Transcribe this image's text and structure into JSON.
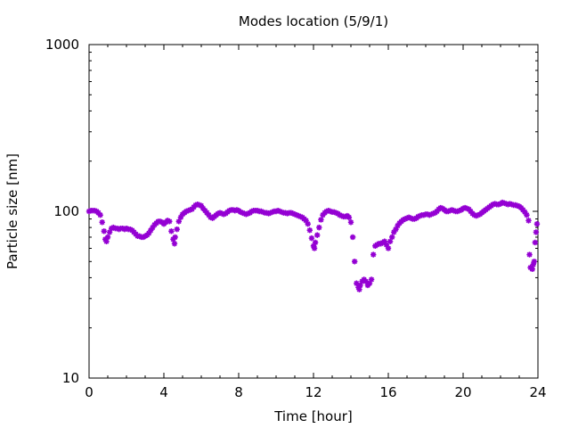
{
  "chart_data": {
    "type": "scatter",
    "title": "Modes location (5/9/1)",
    "xlabel": "Time [hour]",
    "ylabel": "Particle size [nm]",
    "xlim": [
      0,
      24
    ],
    "ylim": [
      10,
      1000
    ],
    "yscale": "log",
    "xticks": [
      0,
      4,
      8,
      12,
      16,
      20,
      24
    ],
    "xtick_labels": [
      "0",
      "4",
      "8",
      "12",
      "16",
      "20",
      "24"
    ],
    "yticks": [
      10,
      100,
      1000
    ],
    "ytick_labels": [
      "10",
      "100",
      "1000"
    ],
    "grid": false,
    "legend": "none",
    "marker": "star",
    "color": "#9400d3",
    "series": [
      {
        "points": [
          [
            0.0,
            100
          ],
          [
            0.1,
            101
          ],
          [
            0.2,
            101
          ],
          [
            0.3,
            101
          ],
          [
            0.4,
            100
          ],
          [
            0.5,
            98
          ],
          [
            0.6,
            95
          ],
          [
            0.7,
            86
          ],
          [
            0.8,
            76
          ],
          [
            0.87,
            68
          ],
          [
            0.93,
            66
          ],
          [
            1.0,
            70
          ],
          [
            1.1,
            75
          ],
          [
            1.2,
            79
          ],
          [
            1.3,
            80
          ],
          [
            1.4,
            79
          ],
          [
            1.5,
            79
          ],
          [
            1.6,
            78
          ],
          [
            1.7,
            79
          ],
          [
            1.8,
            79
          ],
          [
            1.9,
            78
          ],
          [
            2.0,
            79
          ],
          [
            2.1,
            78
          ],
          [
            2.2,
            78
          ],
          [
            2.3,
            77
          ],
          [
            2.4,
            75
          ],
          [
            2.5,
            73
          ],
          [
            2.6,
            71
          ],
          [
            2.7,
            71
          ],
          [
            2.8,
            70
          ],
          [
            2.9,
            70
          ],
          [
            3.0,
            71
          ],
          [
            3.1,
            72
          ],
          [
            3.2,
            74
          ],
          [
            3.3,
            77
          ],
          [
            3.4,
            80
          ],
          [
            3.5,
            83
          ],
          [
            3.6,
            85
          ],
          [
            3.7,
            87
          ],
          [
            3.8,
            87
          ],
          [
            3.9,
            86
          ],
          [
            4.0,
            84
          ],
          [
            4.1,
            86
          ],
          [
            4.2,
            88
          ],
          [
            4.3,
            87
          ],
          [
            4.4,
            76
          ],
          [
            4.5,
            68
          ],
          [
            4.57,
            64
          ],
          [
            4.6,
            70
          ],
          [
            4.7,
            78
          ],
          [
            4.8,
            87
          ],
          [
            4.9,
            92
          ],
          [
            5.0,
            96
          ],
          [
            5.1,
            98
          ],
          [
            5.2,
            100
          ],
          [
            5.3,
            101
          ],
          [
            5.4,
            102
          ],
          [
            5.5,
            103
          ],
          [
            5.6,
            106
          ],
          [
            5.7,
            109
          ],
          [
            5.8,
            110
          ],
          [
            5.9,
            109
          ],
          [
            6.0,
            108
          ],
          [
            6.1,
            104
          ],
          [
            6.2,
            101
          ],
          [
            6.3,
            98
          ],
          [
            6.4,
            95
          ],
          [
            6.5,
            92
          ],
          [
            6.6,
            91
          ],
          [
            6.7,
            93
          ],
          [
            6.8,
            95
          ],
          [
            6.9,
            97
          ],
          [
            7.0,
            98
          ],
          [
            7.1,
            97
          ],
          [
            7.2,
            96
          ],
          [
            7.3,
            97
          ],
          [
            7.4,
            99
          ],
          [
            7.5,
            101
          ],
          [
            7.6,
            102
          ],
          [
            7.7,
            102
          ],
          [
            7.8,
            101
          ],
          [
            7.9,
            102
          ],
          [
            8.0,
            101
          ],
          [
            8.1,
            99
          ],
          [
            8.2,
            98
          ],
          [
            8.3,
            97
          ],
          [
            8.4,
            96
          ],
          [
            8.5,
            97
          ],
          [
            8.6,
            98
          ],
          [
            8.7,
            100
          ],
          [
            8.8,
            101
          ],
          [
            8.9,
            101
          ],
          [
            9.0,
            101
          ],
          [
            9.1,
            100
          ],
          [
            9.2,
            100
          ],
          [
            9.3,
            99
          ],
          [
            9.4,
            98
          ],
          [
            9.5,
            98
          ],
          [
            9.6,
            97
          ],
          [
            9.7,
            98
          ],
          [
            9.8,
            99
          ],
          [
            9.9,
            100
          ],
          [
            10.0,
            100
          ],
          [
            10.1,
            101
          ],
          [
            10.2,
            100
          ],
          [
            10.3,
            99
          ],
          [
            10.4,
            98
          ],
          [
            10.5,
            98
          ],
          [
            10.6,
            97
          ],
          [
            10.7,
            98
          ],
          [
            10.8,
            98
          ],
          [
            10.9,
            97
          ],
          [
            11.0,
            96
          ],
          [
            11.1,
            95
          ],
          [
            11.2,
            94
          ],
          [
            11.3,
            93
          ],
          [
            11.4,
            92
          ],
          [
            11.5,
            90
          ],
          [
            11.6,
            88
          ],
          [
            11.7,
            84
          ],
          [
            11.8,
            77
          ],
          [
            11.9,
            69
          ],
          [
            12.0,
            62
          ],
          [
            12.05,
            60
          ],
          [
            12.1,
            65
          ],
          [
            12.2,
            72
          ],
          [
            12.3,
            80
          ],
          [
            12.4,
            89
          ],
          [
            12.5,
            95
          ],
          [
            12.6,
            98
          ],
          [
            12.7,
            100
          ],
          [
            12.8,
            101
          ],
          [
            12.9,
            100
          ],
          [
            13.0,
            99
          ],
          [
            13.1,
            99
          ],
          [
            13.2,
            98
          ],
          [
            13.3,
            97
          ],
          [
            13.4,
            95
          ],
          [
            13.5,
            94
          ],
          [
            13.6,
            93
          ],
          [
            13.7,
            93
          ],
          [
            13.8,
            94
          ],
          [
            13.9,
            92
          ],
          [
            14.0,
            86
          ],
          [
            14.1,
            70
          ],
          [
            14.2,
            50
          ],
          [
            14.3,
            37
          ],
          [
            14.4,
            35
          ],
          [
            14.45,
            34
          ],
          [
            14.5,
            36
          ],
          [
            14.6,
            38
          ],
          [
            14.7,
            39
          ],
          [
            14.8,
            38
          ],
          [
            14.9,
            36
          ],
          [
            15.0,
            37
          ],
          [
            15.1,
            39
          ],
          [
            15.2,
            55
          ],
          [
            15.3,
            62
          ],
          [
            15.4,
            63
          ],
          [
            15.5,
            64
          ],
          [
            15.6,
            64
          ],
          [
            15.7,
            65
          ],
          [
            15.8,
            66
          ],
          [
            15.9,
            63
          ],
          [
            16.0,
            60
          ],
          [
            16.1,
            66
          ],
          [
            16.2,
            70
          ],
          [
            16.3,
            75
          ],
          [
            16.4,
            78
          ],
          [
            16.5,
            82
          ],
          [
            16.6,
            85
          ],
          [
            16.7,
            87
          ],
          [
            16.8,
            89
          ],
          [
            16.9,
            90
          ],
          [
            17.0,
            91
          ],
          [
            17.1,
            92
          ],
          [
            17.2,
            91
          ],
          [
            17.3,
            90
          ],
          [
            17.4,
            90
          ],
          [
            17.5,
            91
          ],
          [
            17.6,
            93
          ],
          [
            17.7,
            94
          ],
          [
            17.8,
            95
          ],
          [
            17.9,
            95
          ],
          [
            18.0,
            96
          ],
          [
            18.1,
            96
          ],
          [
            18.2,
            95
          ],
          [
            18.3,
            96
          ],
          [
            18.4,
            97
          ],
          [
            18.5,
            98
          ],
          [
            18.6,
            100
          ],
          [
            18.7,
            103
          ],
          [
            18.8,
            105
          ],
          [
            18.9,
            104
          ],
          [
            19.0,
            102
          ],
          [
            19.1,
            100
          ],
          [
            19.2,
            100
          ],
          [
            19.3,
            101
          ],
          [
            19.4,
            102
          ],
          [
            19.5,
            101
          ],
          [
            19.6,
            100
          ],
          [
            19.7,
            100
          ],
          [
            19.8,
            101
          ],
          [
            19.9,
            102
          ],
          [
            20.0,
            104
          ],
          [
            20.1,
            105
          ],
          [
            20.2,
            104
          ],
          [
            20.3,
            103
          ],
          [
            20.4,
            100
          ],
          [
            20.5,
            97
          ],
          [
            20.6,
            95
          ],
          [
            20.7,
            94
          ],
          [
            20.8,
            95
          ],
          [
            20.9,
            96
          ],
          [
            21.0,
            98
          ],
          [
            21.1,
            100
          ],
          [
            21.2,
            102
          ],
          [
            21.3,
            104
          ],
          [
            21.4,
            106
          ],
          [
            21.5,
            108
          ],
          [
            21.6,
            110
          ],
          [
            21.7,
            111
          ],
          [
            21.8,
            110
          ],
          [
            21.9,
            110
          ],
          [
            22.0,
            111
          ],
          [
            22.1,
            113
          ],
          [
            22.2,
            112
          ],
          [
            22.3,
            111
          ],
          [
            22.4,
            110
          ],
          [
            22.5,
            111
          ],
          [
            22.6,
            110
          ],
          [
            22.7,
            109
          ],
          [
            22.8,
            109
          ],
          [
            22.9,
            108
          ],
          [
            23.0,
            107
          ],
          [
            23.1,
            105
          ],
          [
            23.2,
            102
          ],
          [
            23.3,
            99
          ],
          [
            23.4,
            95
          ],
          [
            23.5,
            88
          ],
          [
            23.55,
            55
          ],
          [
            23.6,
            46
          ],
          [
            23.7,
            45
          ],
          [
            23.75,
            48
          ],
          [
            23.8,
            50
          ],
          [
            23.85,
            65
          ],
          [
            23.9,
            75
          ],
          [
            23.95,
            84
          ]
        ]
      }
    ]
  }
}
